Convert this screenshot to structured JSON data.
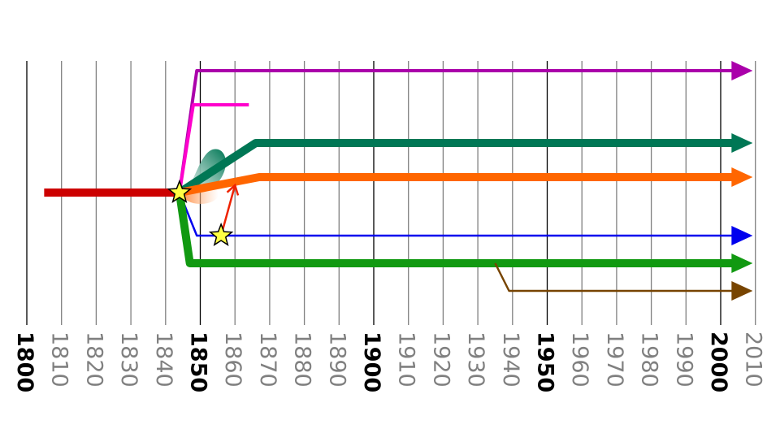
{
  "chart_data": {
    "type": "timeline",
    "x_axis": {
      "min": 1800,
      "max": 2010,
      "step": 10,
      "ticks": [
        "1800",
        "1810",
        "1820",
        "1830",
        "1840",
        "1850",
        "1860",
        "1870",
        "1880",
        "1890",
        "1900",
        "1910",
        "1920",
        "1930",
        "1940",
        "1950",
        "1960",
        "1970",
        "1980",
        "1990",
        "2000",
        "2010"
      ],
      "major_ticks": [
        "1800",
        "1850",
        "1900",
        "1950",
        "2000"
      ],
      "major_color": "#000000",
      "minor_color": "#808080"
    },
    "lanes": {
      "purple": 0,
      "magenta": 1,
      "teal": 2,
      "orange": 3,
      "root": 4,
      "blue": 5,
      "green": 6,
      "brown": 7
    },
    "branches": [
      {
        "id": "root",
        "color": "#cc0000",
        "start": 1805,
        "end": 1844,
        "lane": "root",
        "weight": "heavy",
        "arrow": false
      },
      {
        "id": "purple",
        "color": "#aa00aa",
        "from_year": 1844,
        "from_lane": "root",
        "start": 1849,
        "end": 2005,
        "lane": "purple",
        "weight": "medium",
        "arrow": true
      },
      {
        "id": "magenta",
        "color": "#ff00cc",
        "from_year": 1844,
        "from_lane": "root",
        "start": 1848,
        "end": 1864,
        "lane": "magenta",
        "weight": "medium",
        "arrow": false
      },
      {
        "id": "teal",
        "color": "#007755",
        "from_year": 1844,
        "from_lane": "root",
        "start": 1866,
        "end": 2005,
        "lane": "teal",
        "weight": "heavy",
        "arrow": true
      },
      {
        "id": "orange",
        "color": "#ff6600",
        "from_year": 1844,
        "from_lane": "root",
        "start": 1867,
        "end": 2005,
        "lane": "orange",
        "weight": "heavy",
        "arrow": true
      },
      {
        "id": "blue",
        "color": "#0000ee",
        "from_year": 1844,
        "from_lane": "root",
        "start": 1849,
        "end": 2005,
        "lane": "blue",
        "weight": "light",
        "arrow": true
      },
      {
        "id": "green",
        "color": "#119911",
        "from_year": 1844,
        "from_lane": "root",
        "start": 1847,
        "end": 2005,
        "lane": "green",
        "weight": "heavy",
        "arrow": true
      },
      {
        "id": "brown",
        "color": "#774400",
        "from_year": 1935,
        "from_lane": "green",
        "start": 1939,
        "end": 2005,
        "lane": "brown",
        "weight": "light",
        "arrow": true
      }
    ],
    "transitions": [
      {
        "id": "blue-to-orange",
        "color": "#ee2200",
        "from_year": 1856,
        "from_lane": "blue",
        "to_year": 1860,
        "to_lane": "orange"
      }
    ],
    "events": [
      {
        "year": 1844,
        "lane": "root",
        "symbol": "star",
        "fill": "#ffff44"
      },
      {
        "year": 1856,
        "lane": "blue",
        "symbol": "star",
        "fill": "#ffff44"
      }
    ]
  }
}
